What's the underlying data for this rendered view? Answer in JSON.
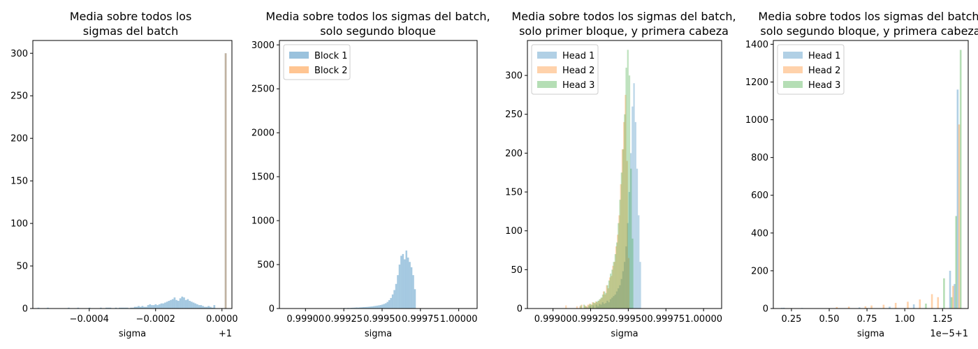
{
  "chart_data": [
    {
      "type": "histogram",
      "title": [
        "Media sobre todos los",
        "sigmas del batch"
      ],
      "xlabel": "sigma",
      "ylabel": "",
      "offset_label": "+1",
      "xlim": [
        -0.00057,
        3e-05
      ],
      "ylim": [
        0,
        315
      ],
      "xticks": [
        {
          "v": -0.0004,
          "label": "−0.0004"
        },
        {
          "v": -0.0002,
          "label": "−0.0002"
        },
        {
          "v": 0.0,
          "label": "0.0000"
        }
      ],
      "yticks": [
        0,
        50,
        100,
        150,
        200,
        250,
        300
      ],
      "legend": null,
      "series": [
        {
          "name": "",
          "color": "#1f77b4",
          "alpha": 0.4,
          "bin_start": -0.000556,
          "bin_width": 5.7e-06,
          "counts": [
            1,
            0,
            0,
            0,
            0,
            1,
            0,
            0,
            0,
            0,
            0,
            0,
            0,
            0,
            0,
            0,
            1,
            0,
            0,
            0,
            0,
            1,
            0,
            0,
            0,
            0,
            0,
            1,
            0,
            0,
            0,
            0,
            0,
            1,
            0,
            0,
            1,
            1,
            1,
            0,
            0,
            1,
            0,
            1,
            1,
            1,
            1,
            1,
            0,
            1,
            1,
            2,
            2,
            3,
            2,
            3,
            2,
            2,
            4,
            5,
            4,
            4,
            5,
            4,
            5,
            6,
            6,
            7,
            8,
            9,
            10,
            11,
            13,
            10,
            9,
            12,
            14,
            13,
            10,
            11,
            9,
            8,
            7,
            6,
            5,
            4,
            4,
            3,
            2,
            2,
            3,
            2,
            1,
            4,
            0,
            0,
            0,
            0,
            0,
            300
          ]
        },
        {
          "name": "",
          "color": "#ff7f0e",
          "alpha": 0.3,
          "bin_start": -0.000556,
          "bin_width": 5.7e-06,
          "counts": [
            0,
            0,
            0,
            0,
            0,
            0,
            0,
            0,
            0,
            0,
            0,
            0,
            0,
            0,
            0,
            0,
            0,
            0,
            0,
            0,
            0,
            0,
            0,
            0,
            0,
            0,
            0,
            0,
            0,
            0,
            0,
            0,
            0,
            0,
            0,
            0,
            0,
            0,
            0,
            0,
            0,
            0,
            0,
            0,
            0,
            0,
            0,
            0,
            0,
            0,
            0,
            0,
            0,
            0,
            0,
            0,
            0,
            0,
            0,
            0,
            0,
            0,
            0,
            0,
            0,
            0,
            0,
            0,
            0,
            0,
            0,
            0,
            0,
            0,
            0,
            0,
            0,
            0,
            0,
            0,
            0,
            0,
            0,
            0,
            0,
            0,
            0,
            0,
            0,
            0,
            0,
            0,
            0,
            0,
            0,
            0,
            0,
            0,
            0,
            300
          ]
        }
      ]
    },
    {
      "type": "histogram",
      "title": [
        "Media sobre todos los sigmas del batch,",
        "solo segundo bloque"
      ],
      "xlabel": "sigma",
      "ylabel": "",
      "offset_label": "",
      "xlim": [
        0.99883,
        1.00012
      ],
      "ylim": [
        0,
        3050
      ],
      "xticks": [
        {
          "v": 0.999,
          "label": "0.99900"
        },
        {
          "v": 0.99925,
          "label": "0.99925"
        },
        {
          "v": 0.9995,
          "label": "0.99950"
        },
        {
          "v": 0.99975,
          "label": "0.99975"
        },
        {
          "v": 1.0,
          "label": "1.00000"
        }
      ],
      "yticks": [
        0,
        500,
        1000,
        1500,
        2000,
        2500,
        3000
      ],
      "legend": [
        "Block 1",
        "Block 2"
      ],
      "series": [
        {
          "name": "Block 1",
          "color": "#1f77b4",
          "alpha": 0.4,
          "bin_start": 0.99888,
          "bin_width": 1.12e-05,
          "counts": [
            1,
            0,
            0,
            0,
            0,
            0,
            1,
            0,
            0,
            0,
            0,
            0,
            0,
            1,
            0,
            0,
            0,
            0,
            2,
            0,
            0,
            0,
            0,
            3,
            0,
            2,
            1,
            3,
            2,
            4,
            3,
            5,
            4,
            6,
            5,
            7,
            6,
            8,
            9,
            10,
            12,
            11,
            13,
            14,
            16,
            17,
            18,
            20,
            22,
            24,
            27,
            30,
            33,
            36,
            40,
            45,
            52,
            60,
            75,
            95,
            120,
            160,
            210,
            280,
            380,
            500,
            600,
            620,
            560,
            660,
            580,
            530,
            470,
            380,
            220
          ]
        },
        {
          "name": "Block 2",
          "color": "#ff7f0e",
          "alpha": 0.4,
          "bin_start": 0.99888,
          "bin_width": 1.12e-05,
          "counts": []
        }
      ]
    },
    {
      "type": "histogram",
      "title": [
        "Media sobre todos los sigmas del batch,",
        "solo primer bloque, y primera cabeza"
      ],
      "xlabel": "sigma",
      "ylabel": "",
      "offset_label": "",
      "xlim": [
        0.99883,
        1.00012
      ],
      "ylim": [
        0,
        345
      ],
      "xticks": [
        {
          "v": 0.999,
          "label": "0.99900"
        },
        {
          "v": 0.99925,
          "label": "0.99925"
        },
        {
          "v": 0.9995,
          "label": "0.99950"
        },
        {
          "v": 0.99975,
          "label": "0.99975"
        },
        {
          "v": 1.0,
          "label": "1.00000"
        }
      ],
      "yticks": [
        0,
        50,
        100,
        150,
        200,
        250,
        300
      ],
      "legend": [
        "Head 1",
        "Head 2",
        "Head 3"
      ],
      "series": [
        {
          "name": "Head 1",
          "color": "#1f77b4",
          "alpha": 0.3,
          "bin_start": 0.9992,
          "bin_width": 1.04e-05,
          "counts": [
            0,
            0,
            2,
            0,
            3,
            0,
            4,
            0,
            5,
            3,
            6,
            5,
            8,
            6,
            7,
            10,
            8,
            12,
            14,
            16,
            18,
            22,
            26,
            30,
            38,
            48,
            60,
            80,
            110,
            150,
            200,
            260,
            290,
            240,
            180,
            120,
            60
          ]
        },
        {
          "name": "Head 2",
          "color": "#ff7f0e",
          "alpha": 0.3,
          "bin_start": 0.99905,
          "bin_width": 1.04e-05,
          "counts": [
            0,
            0,
            0,
            4,
            0,
            0,
            0,
            0,
            0,
            0,
            3,
            0,
            3,
            5,
            0,
            4,
            3,
            5,
            6,
            5,
            8,
            7,
            9,
            8,
            10,
            12,
            14,
            22,
            18,
            30,
            26,
            40,
            42,
            55,
            60,
            80,
            95,
            120,
            160,
            205,
            240,
            275,
            190,
            65
          ]
        },
        {
          "name": "Head 3",
          "color": "#2ca02c",
          "alpha": 0.3,
          "bin_start": 0.99918,
          "bin_width": 1.04e-05,
          "counts": [
            4,
            0,
            5,
            3,
            0,
            4,
            6,
            5,
            8,
            7,
            9,
            10,
            12,
            14,
            18,
            22,
            20,
            30,
            36,
            45,
            50,
            60,
            70,
            85,
            110,
            140,
            175,
            205,
            250,
            310,
            333,
            300,
            180,
            90
          ]
        }
      ]
    },
    {
      "type": "histogram",
      "title": [
        "Media sobre todos los sigmas del batch,",
        "solo segundo bloque, y primera cabeza"
      ],
      "xlabel": "sigma",
      "ylabel": "",
      "offset_label": "1e−5+1",
      "xlim": [
        0.13,
        1.42
      ],
      "ylim": [
        0,
        1420
      ],
      "xticks": [
        {
          "v": 0.25,
          "label": "0.25"
        },
        {
          "v": 0.5,
          "label": "0.50"
        },
        {
          "v": 0.75,
          "label": "0.75"
        },
        {
          "v": 1.0,
          "label": "1.00"
        },
        {
          "v": 1.25,
          "label": "1.25"
        }
      ],
      "yticks": [
        0,
        200,
        400,
        600,
        800,
        1000,
        1200,
        1400
      ],
      "legend": [
        "Head 1",
        "Head 2",
        "Head 3"
      ],
      "series": [
        {
          "name": "Head 1",
          "color": "#1f77b4",
          "alpha": 0.3,
          "bin_start": 0.18,
          "bin_width": 0.0124,
          "counts": [
            4,
            0,
            0,
            0,
            0,
            0,
            0,
            0,
            0,
            0,
            0,
            0,
            0,
            0,
            0,
            0,
            0,
            0,
            0,
            0,
            0,
            0,
            0,
            0,
            0,
            0,
            0,
            0,
            0,
            0,
            0,
            0,
            0,
            0,
            0,
            0,
            0,
            0,
            0,
            0,
            0,
            0,
            0,
            0,
            0,
            0,
            0,
            0,
            0,
            0,
            0,
            0,
            0,
            0,
            0,
            0,
            0,
            0,
            0,
            0,
            0,
            0,
            0,
            0,
            0,
            0,
            0,
            0,
            0,
            0,
            0,
            0,
            0,
            0,
            0,
            0,
            0,
            0,
            0,
            0,
            0,
            0,
            0,
            0,
            0,
            0,
            0,
            0,
            0,
            0,
            0,
            0,
            0,
            0,
            0,
            0,
            0,
            0,
            0,
            0,
            0,
            0,
            0,
            0,
            0,
            0,
            0,
            0,
            0,
            0,
            0,
            0,
            0,
            0,
            0,
            0,
            0,
            0,
            0,
            0,
            0,
            0,
            0,
            0,
            0,
            0,
            0,
            0,
            0,
            0,
            0,
            0,
            0,
            0,
            0,
            0,
            0,
            0,
            0,
            0,
            0,
            0,
            0,
            0,
            0,
            0,
            0,
            0,
            0,
            0,
            0,
            0,
            0,
            0,
            0,
            0,
            0,
            0,
            0,
            0,
            0,
            0,
            0,
            0,
            0,
            0,
            0,
            0,
            0,
            0,
            0,
            0,
            0,
            0,
            0,
            0,
            0,
            0,
            0,
            0,
            0,
            0,
            0,
            0,
            0,
            0,
            0,
            0,
            0,
            0,
            0,
            0,
            0,
            0,
            0,
            0,
            0,
            0,
            0,
            0,
            0,
            0,
            0,
            0,
            0,
            0,
            0,
            0,
            0,
            0,
            0,
            0,
            0,
            0,
            0,
            0,
            0,
            0,
            0,
            0,
            0,
            0,
            0,
            0,
            0,
            0,
            0,
            0,
            0,
            0,
            0,
            0,
            0,
            0,
            0,
            0,
            0,
            0,
            0,
            0,
            0,
            0,
            0,
            0,
            0,
            0,
            0,
            0,
            0,
            0,
            0,
            0
          ]
        },
        {
          "name": "Head 2",
          "color": "#ff7f0e",
          "alpha": 0.3,
          "bin_start": 0.18,
          "bin_width": 0.0124,
          "counts": []
        },
        {
          "name": "Head 3",
          "color": "#2ca02c",
          "alpha": 0.3,
          "bin_start": 0.18,
          "bin_width": 0.0124,
          "counts": []
        }
      ],
      "sparse_bars": [
        {
          "series": 0,
          "x": 0.2,
          "v": 4
        },
        {
          "series": 0,
          "x": 0.32,
          "v": 3
        },
        {
          "series": 1,
          "x": 0.55,
          "v": 8
        },
        {
          "series": 1,
          "x": 0.63,
          "v": 10
        },
        {
          "series": 0,
          "x": 0.7,
          "v": 6
        },
        {
          "series": 1,
          "x": 0.74,
          "v": 12
        },
        {
          "series": 1,
          "x": 0.78,
          "v": 16
        },
        {
          "series": 1,
          "x": 0.86,
          "v": 20
        },
        {
          "series": 0,
          "x": 0.9,
          "v": 10
        },
        {
          "series": 1,
          "x": 0.94,
          "v": 30
        },
        {
          "series": 1,
          "x": 1.02,
          "v": 36
        },
        {
          "series": 0,
          "x": 1.06,
          "v": 22
        },
        {
          "series": 1,
          "x": 1.1,
          "v": 48
        },
        {
          "series": 2,
          "x": 1.14,
          "v": 26
        },
        {
          "series": 1,
          "x": 1.18,
          "v": 76
        },
        {
          "series": 1,
          "x": 1.22,
          "v": 60
        },
        {
          "series": 2,
          "x": 1.26,
          "v": 160
        },
        {
          "series": 0,
          "x": 1.3,
          "v": 200
        },
        {
          "series": 1,
          "x": 1.32,
          "v": 120
        },
        {
          "series": 2,
          "x": 1.34,
          "v": 490
        },
        {
          "series": 0,
          "x": 1.35,
          "v": 1160
        },
        {
          "series": 1,
          "x": 1.36,
          "v": 975
        },
        {
          "series": 2,
          "x": 1.37,
          "v": 1370
        },
        {
          "series": 0,
          "x": 1.33,
          "v": 130
        },
        {
          "series": 2,
          "x": 1.31,
          "v": 60
        }
      ]
    }
  ]
}
